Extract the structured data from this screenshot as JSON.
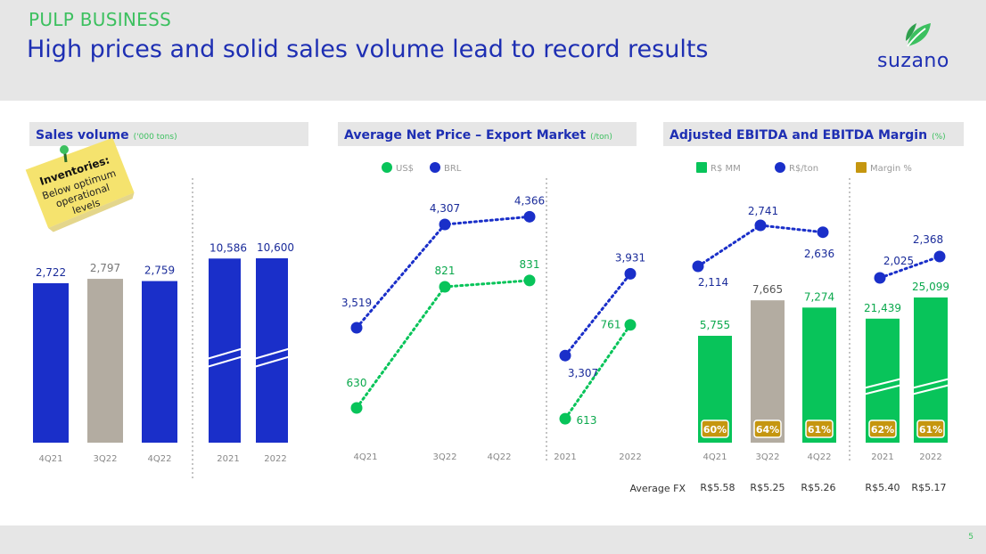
{
  "header": {
    "kicker": "PULP BUSINESS",
    "title": "High prices and solid sales volume lead to record results",
    "logo_text": "suzano",
    "page_number": "5"
  },
  "sticky_note": {
    "title": "Inventories:",
    "lines": [
      "Below optimum",
      "operational",
      "levels"
    ]
  },
  "colors": {
    "blue": "#1a2fc9",
    "gray": "#b3aca1",
    "green": "#08c45a",
    "gold": "#c5960f",
    "panel": "#e6e6e6",
    "title_blue": "#1e2fb3"
  },
  "fx": {
    "label": "Average FX",
    "values": [
      "R$5.58",
      "R$5.25",
      "R$5.26",
      "R$5.40",
      "R$5.17"
    ]
  },
  "chart_data": [
    {
      "type": "bar",
      "title": "Sales volume",
      "unit": "('000 tons)",
      "categories": [
        "4Q21",
        "3Q22",
        "4Q22",
        "2021",
        "2022"
      ],
      "values": [
        2722,
        2797,
        2759,
        10586,
        10600
      ],
      "value_labels": [
        "2,722",
        "2,797",
        "2,759",
        "10,586",
        "10,600"
      ],
      "bar_colors": [
        "blue",
        "gray",
        "blue",
        "blue",
        "blue"
      ],
      "axis_break": [
        false,
        false,
        false,
        true,
        true
      ]
    },
    {
      "type": "line",
      "title": "Average Net Price – Export Market",
      "unit": "(/ton)",
      "legend": [
        "US$",
        "BRL"
      ],
      "groups": [
        {
          "categories": [
            "4Q21",
            "3Q22",
            "4Q22"
          ],
          "series": [
            {
              "name": "US$",
              "values": [
                630,
                821,
                831
              ],
              "labels": [
                "630",
                "821",
                "831"
              ]
            },
            {
              "name": "BRL",
              "values": [
                3519,
                4307,
                4366
              ],
              "labels": [
                "3,519",
                "4,307",
                "4,366"
              ]
            }
          ]
        },
        {
          "categories": [
            "2021",
            "2022"
          ],
          "series": [
            {
              "name": "US$",
              "values": [
                613,
                761
              ],
              "labels": [
                "613",
                "761"
              ]
            },
            {
              "name": "BRL",
              "values": [
                3307,
                3931
              ],
              "labels": [
                "3,307",
                "3,931"
              ]
            }
          ]
        }
      ]
    },
    {
      "type": "bar",
      "title": "Adjusted EBITDA and EBITDA Margin",
      "unit": "(%)",
      "legend": [
        "R$ MM",
        "R$/ton",
        "Margin %"
      ],
      "categories": [
        "4Q21",
        "3Q22",
        "4Q22",
        "2021",
        "2022"
      ],
      "series": [
        {
          "name": "R$ MM",
          "values": [
            5755,
            7665,
            7274,
            21439,
            25099
          ],
          "labels": [
            "5,755",
            "7,665",
            "7,274",
            "21,439",
            "25,099"
          ]
        },
        {
          "name": "R$/ton",
          "values": [
            2114,
            2741,
            2636,
            2025,
            2368
          ],
          "labels": [
            "2,114",
            "2,741",
            "2,636",
            "2,025",
            "2,368"
          ]
        },
        {
          "name": "Margin %",
          "values": [
            60,
            64,
            61,
            62,
            61
          ],
          "labels": [
            "60%",
            "64%",
            "61%",
            "62%",
            "61%"
          ]
        }
      ],
      "bar_colors": [
        "green",
        "gray",
        "green",
        "green",
        "green"
      ],
      "axis_break": [
        false,
        false,
        false,
        true,
        true
      ]
    }
  ]
}
